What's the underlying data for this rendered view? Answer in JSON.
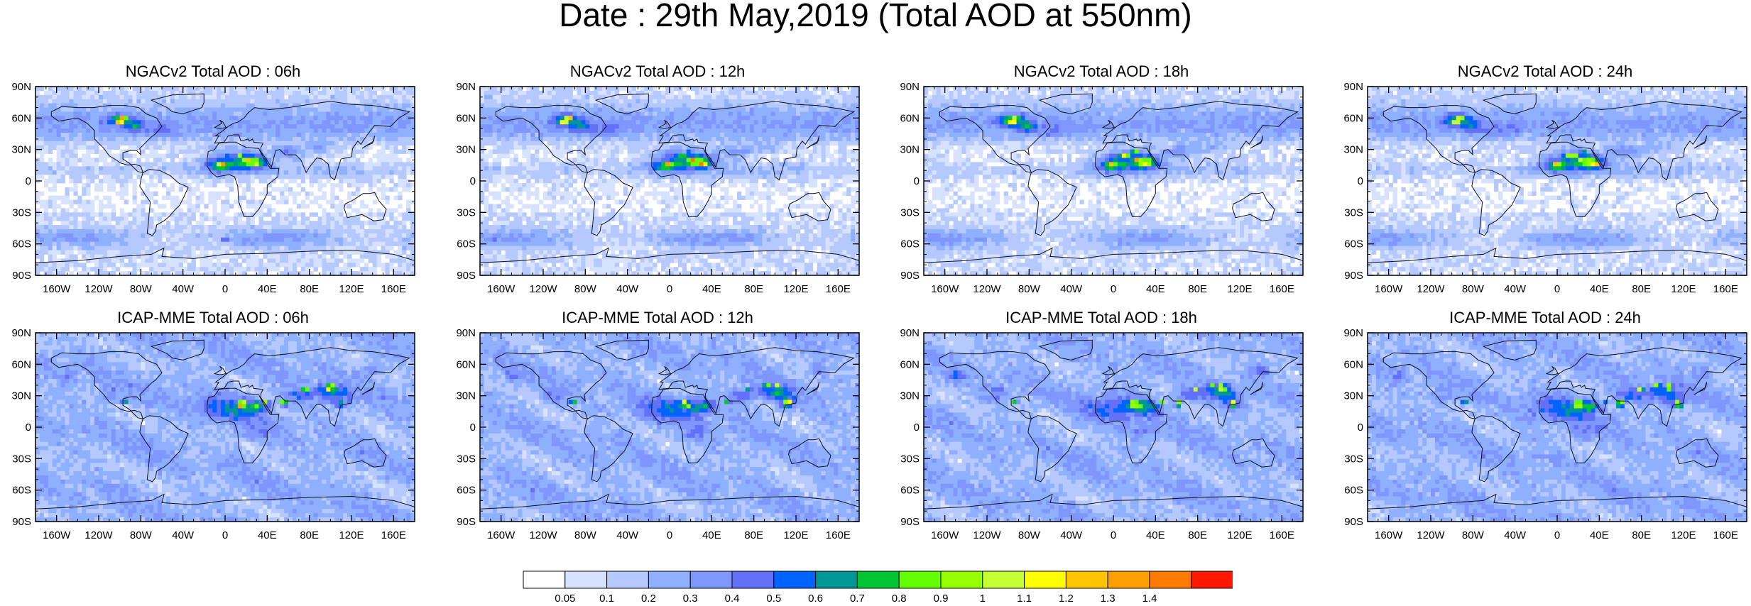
{
  "title": "Date : 29th May,2019 (Total AOD at 550nm)",
  "lat_labels": [
    "90N",
    "60N",
    "30N",
    "0",
    "30S",
    "60S",
    "90S"
  ],
  "lon_labels": [
    "160W",
    "120W",
    "80W",
    "40W",
    "0",
    "40E",
    "80E",
    "120E",
    "160E"
  ],
  "colors": {
    "levels": [
      "#ffffff",
      "#d6e2ff",
      "#b5c9ff",
      "#8fb0ff",
      "#7f96ff",
      "#6370f8",
      "#0063ff",
      "#009696",
      "#00c633",
      "#63ff00",
      "#96ff00",
      "#c6ff33",
      "#ffff00",
      "#ffc600",
      "#ffa000",
      "#ff7c00",
      "#ff1900"
    ]
  },
  "chart_data": [
    {
      "type": "heatmap",
      "title": "NGACv2 Total AOD : 06h",
      "model": "NGACv2",
      "forecast_hour": "06h",
      "xlim": [
        -180,
        180
      ],
      "ylim": [
        -90,
        90
      ]
    },
    {
      "type": "heatmap",
      "title": "NGACv2 Total AOD : 12h",
      "model": "NGACv2",
      "forecast_hour": "12h",
      "xlim": [
        -180,
        180
      ],
      "ylim": [
        -90,
        90
      ]
    },
    {
      "type": "heatmap",
      "title": "NGACv2 Total AOD : 18h",
      "model": "NGACv2",
      "forecast_hour": "18h",
      "xlim": [
        -180,
        180
      ],
      "ylim": [
        -90,
        90
      ]
    },
    {
      "type": "heatmap",
      "title": "NGACv2 Total AOD : 24h",
      "model": "NGACv2",
      "forecast_hour": "24h",
      "xlim": [
        -180,
        180
      ],
      "ylim": [
        -90,
        90
      ]
    },
    {
      "type": "heatmap",
      "title": "ICAP-MME Total AOD : 06h",
      "model": "ICAP-MME",
      "forecast_hour": "06h",
      "xlim": [
        -180,
        180
      ],
      "ylim": [
        -90,
        90
      ]
    },
    {
      "type": "heatmap",
      "title": "ICAP-MME Total AOD : 12h",
      "model": "ICAP-MME",
      "forecast_hour": "12h",
      "xlim": [
        -180,
        180
      ],
      "ylim": [
        -90,
        90
      ]
    },
    {
      "type": "heatmap",
      "title": "ICAP-MME Total AOD : 18h",
      "model": "ICAP-MME",
      "forecast_hour": "18h",
      "xlim": [
        -180,
        180
      ],
      "ylim": [
        -90,
        90
      ]
    },
    {
      "type": "heatmap",
      "title": "ICAP-MME Total AOD : 24h",
      "model": "ICAP-MME",
      "forecast_hour": "24h",
      "xlim": [
        -180,
        180
      ],
      "ylim": [
        -90,
        90
      ]
    }
  ],
  "colorbar": {
    "labels": [
      "0.05",
      "0.1",
      "0.2",
      "0.3",
      "0.4",
      "0.5",
      "0.6",
      "0.7",
      "0.8",
      "0.9",
      "1",
      "1.1",
      "1.2",
      "1.3",
      "1.4"
    ]
  }
}
